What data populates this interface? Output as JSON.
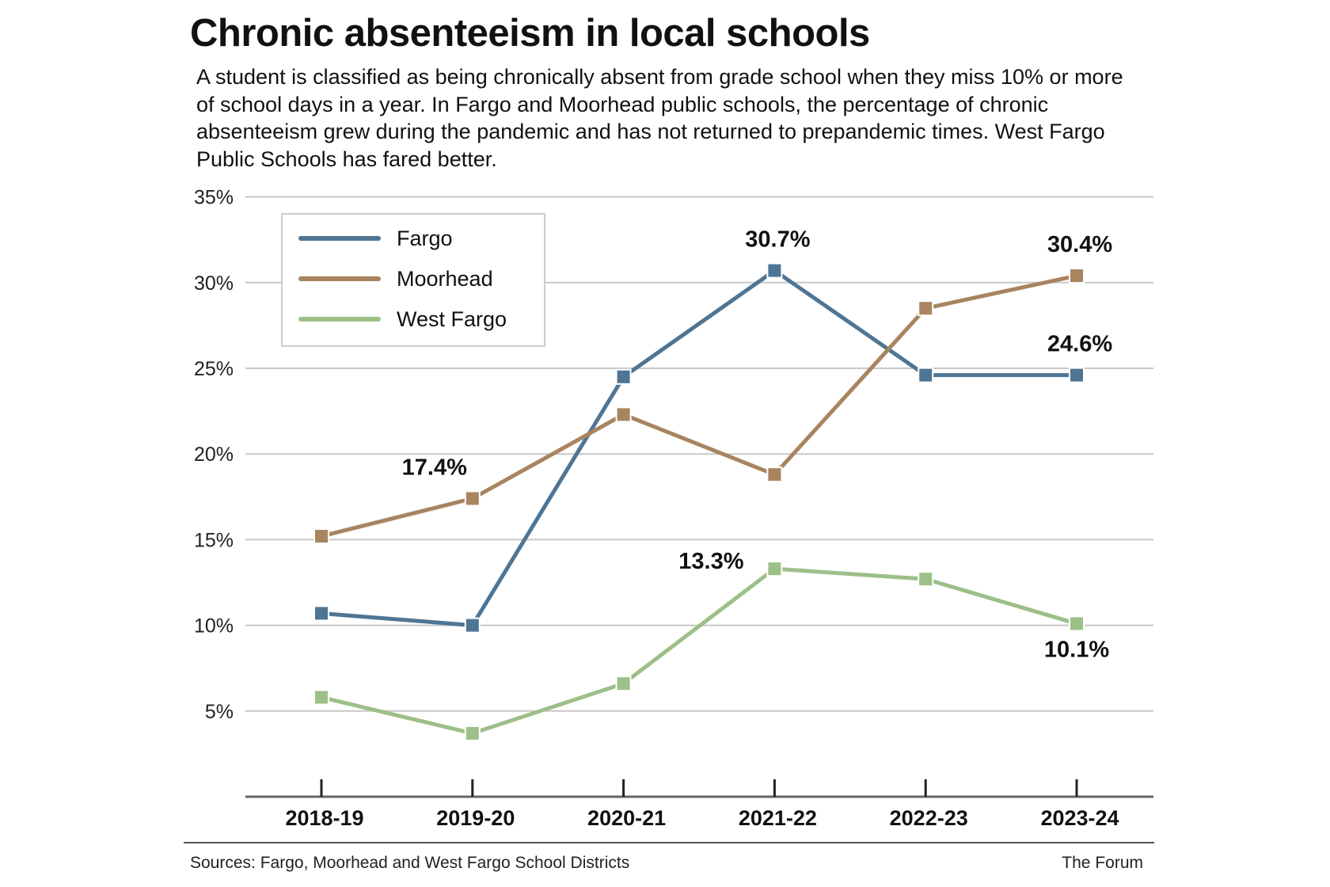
{
  "title": "Chronic absenteeism in local schools",
  "subtitle": "A student is classified as being chronically absent from grade school when they miss 10% or more of school days in a year. In Fargo and Moorhead public schools, the percentage of chronic absenteeism grew during the pandemic and has not returned to prepandemic times. West Fargo Public Schools has fared better.",
  "footer": {
    "source": "Sources: Fargo, Moorhead and West Fargo School Districts",
    "credit": "The Forum"
  },
  "chart_data": {
    "type": "line",
    "title": "Chronic absenteeism in local schools",
    "xlabel": "",
    "ylabel": "",
    "categories": [
      "2018-19",
      "2019-20",
      "2020-21",
      "2021-22",
      "2022-23",
      "2023-24"
    ],
    "ylim": [
      0,
      35
    ],
    "yticks": [
      5,
      10,
      15,
      20,
      25,
      30,
      35
    ],
    "ytick_labels": [
      "5%",
      "10%",
      "15%",
      "20%",
      "25%",
      "30%",
      "35%"
    ],
    "grid": true,
    "legend_position": "top-left",
    "series": [
      {
        "name": "Fargo",
        "color": "#4f7594",
        "values": [
          10.7,
          10.0,
          24.5,
          30.7,
          24.6,
          24.6
        ]
      },
      {
        "name": "Moorhead",
        "color": "#a8845f",
        "values": [
          15.2,
          17.4,
          22.3,
          18.8,
          28.5,
          30.4
        ]
      },
      {
        "name": "West Fargo",
        "color": "#9dbf88",
        "values": [
          5.8,
          3.7,
          6.6,
          13.3,
          12.7,
          10.1
        ]
      }
    ],
    "annotations": [
      {
        "series": "Moorhead",
        "category": "2019-20",
        "text": "17.4%",
        "placement": "above"
      },
      {
        "series": "Fargo",
        "category": "2021-22",
        "text": "30.7%",
        "placement": "above"
      },
      {
        "series": "Moorhead",
        "category": "2023-24",
        "text": "30.4%",
        "placement": "above"
      },
      {
        "series": "Fargo",
        "category": "2023-24",
        "text": "24.6%",
        "placement": "above"
      },
      {
        "series": "West Fargo",
        "category": "2021-22",
        "text": "13.3%",
        "placement": "left"
      },
      {
        "series": "West Fargo",
        "category": "2023-24",
        "text": "10.1%",
        "placement": "below"
      }
    ]
  }
}
